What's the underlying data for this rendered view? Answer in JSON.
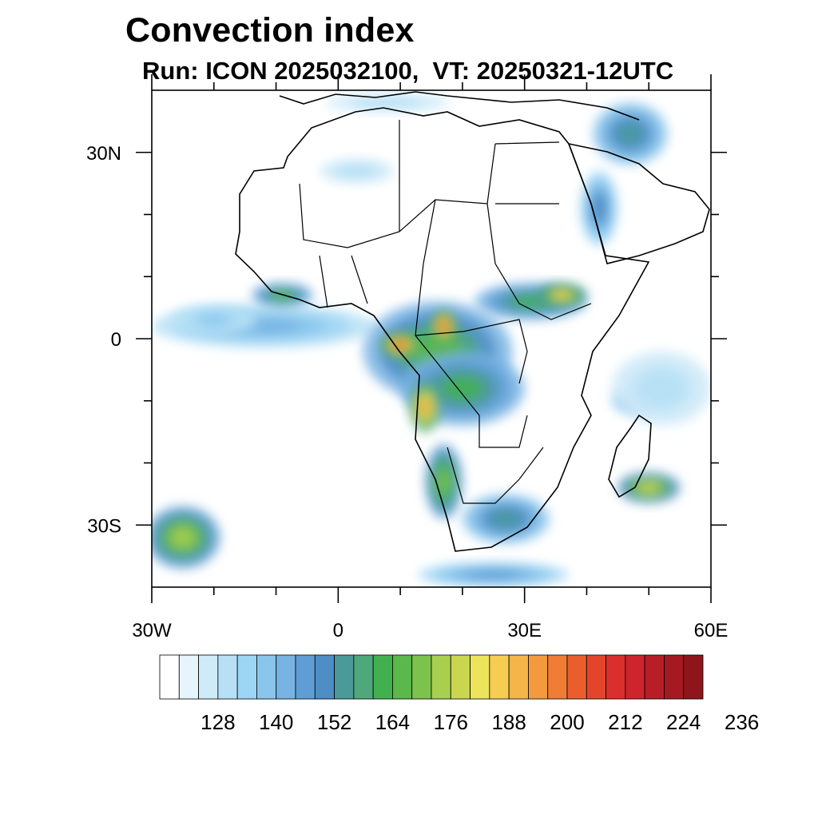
{
  "title": "Convection index",
  "subtitle": "Run: ICON 2025032100,  VT: 20250321-12UTC",
  "map": {
    "lon_range": [
      -30,
      60
    ],
    "lat_range": [
      -40,
      40
    ],
    "lat_labels": [
      {
        "value": 30,
        "text": "30N"
      },
      {
        "value": 0,
        "text": "0"
      },
      {
        "value": -30,
        "text": "30S"
      }
    ],
    "lon_labels": [
      {
        "value": -30,
        "text": "30W"
      },
      {
        "value": 0,
        "text": "0"
      },
      {
        "value": 30,
        "text": "30E"
      },
      {
        "value": 60,
        "text": "60E"
      }
    ],
    "lon_minor_ticks": [
      -20,
      -10,
      10,
      20,
      40,
      50
    ],
    "lat_minor_ticks": [
      20,
      10,
      -10,
      -20
    ]
  },
  "colorbar": {
    "colors": [
      "#ffffff",
      "#e6f4fc",
      "#cfeaf8",
      "#b7e0f6",
      "#9dd5f4",
      "#8ac6ec",
      "#77b3e3",
      "#5f9ed5",
      "#4e8dc6",
      "#4a9a9a",
      "#4ea87c",
      "#43b050",
      "#5bb84a",
      "#7cc24d",
      "#a8cf50",
      "#cbd64f",
      "#ece45a",
      "#f6cd52",
      "#f5b548",
      "#f49a3e",
      "#f07c35",
      "#ea5e2e",
      "#e3452b",
      "#da2f2c",
      "#cc252d",
      "#b81e28",
      "#a51922",
      "#8f151c"
    ],
    "labels": [
      "128",
      "140",
      "152",
      "164",
      "176",
      "188",
      "200",
      "212",
      "224",
      "236"
    ]
  },
  "fields": [
    {
      "name": "gulf-of-guinea-band",
      "lon": -12,
      "lat": 2,
      "rx": 18,
      "ry": 3.5,
      "level": 6
    },
    {
      "name": "liberia-coast-cell",
      "lon": -9,
      "lat": 7,
      "rx": 5,
      "ry": 2,
      "level": 12
    },
    {
      "name": "west-ocean-cell",
      "lon": -20,
      "lat": 3,
      "rx": 7,
      "ry": 2.5,
      "level": 5
    },
    {
      "name": "congo-core",
      "lon": 16,
      "lat": -2,
      "rx": 12,
      "ry": 8,
      "level": 12
    },
    {
      "name": "gabon-hotspot",
      "lon": 10,
      "lat": -1,
      "rx": 3,
      "ry": 2,
      "level": 21
    },
    {
      "name": "cameroon-hotspot",
      "lon": 17,
      "lat": 2,
      "rx": 2,
      "ry": 2.5,
      "level": 22
    },
    {
      "name": "drc-south",
      "lon": 20,
      "lat": -8,
      "rx": 10,
      "ry": 6,
      "level": 11
    },
    {
      "name": "angola-hotspot",
      "lon": 14,
      "lat": -11,
      "rx": 2.5,
      "ry": 4,
      "level": 19
    },
    {
      "name": "east-africa-band",
      "lon": 31,
      "lat": 6,
      "rx": 9,
      "ry": 3,
      "level": 11
    },
    {
      "name": "ethiopia-hotspot",
      "lon": 36,
      "lat": 7,
      "rx": 4,
      "ry": 2,
      "level": 17
    },
    {
      "name": "namibia-strip",
      "lon": 17,
      "lat": -23,
      "rx": 3,
      "ry": 6,
      "level": 13
    },
    {
      "name": "south-africa-cell",
      "lon": 27,
      "lat": -29,
      "rx": 7,
      "ry": 4,
      "level": 9
    },
    {
      "name": "madagascar-east",
      "lon": 50,
      "lat": -24,
      "rx": 5,
      "ry": 2.5,
      "level": 15
    },
    {
      "name": "madagascar-north",
      "lon": 48,
      "lat": -10,
      "rx": 4,
      "ry": 2,
      "level": 8
    },
    {
      "name": "indian-ocean-haze",
      "lon": 52,
      "lat": -8,
      "rx": 8,
      "ry": 6,
      "level": 3
    },
    {
      "name": "southwest-atlantic-cell",
      "lon": -25,
      "lat": -32,
      "rx": 6,
      "ry": 5,
      "level": 14
    },
    {
      "name": "south-atlantic-band",
      "lon": 25,
      "lat": -38,
      "rx": 12,
      "ry": 2,
      "level": 7
    },
    {
      "name": "arabia-band",
      "lon": 47,
      "lat": 33,
      "rx": 6,
      "ry": 5,
      "level": 9
    },
    {
      "name": "red-sea-strip",
      "lon": 42,
      "lat": 21,
      "rx": 3,
      "ry": 6,
      "level": 8
    },
    {
      "name": "sahara-streak",
      "lon": 3,
      "lat": 27,
      "rx": 6,
      "ry": 2,
      "level": 3
    },
    {
      "name": "mediterranean-streak",
      "lon": 8,
      "lat": 38,
      "rx": 10,
      "ry": 1.5,
      "level": 3
    }
  ]
}
